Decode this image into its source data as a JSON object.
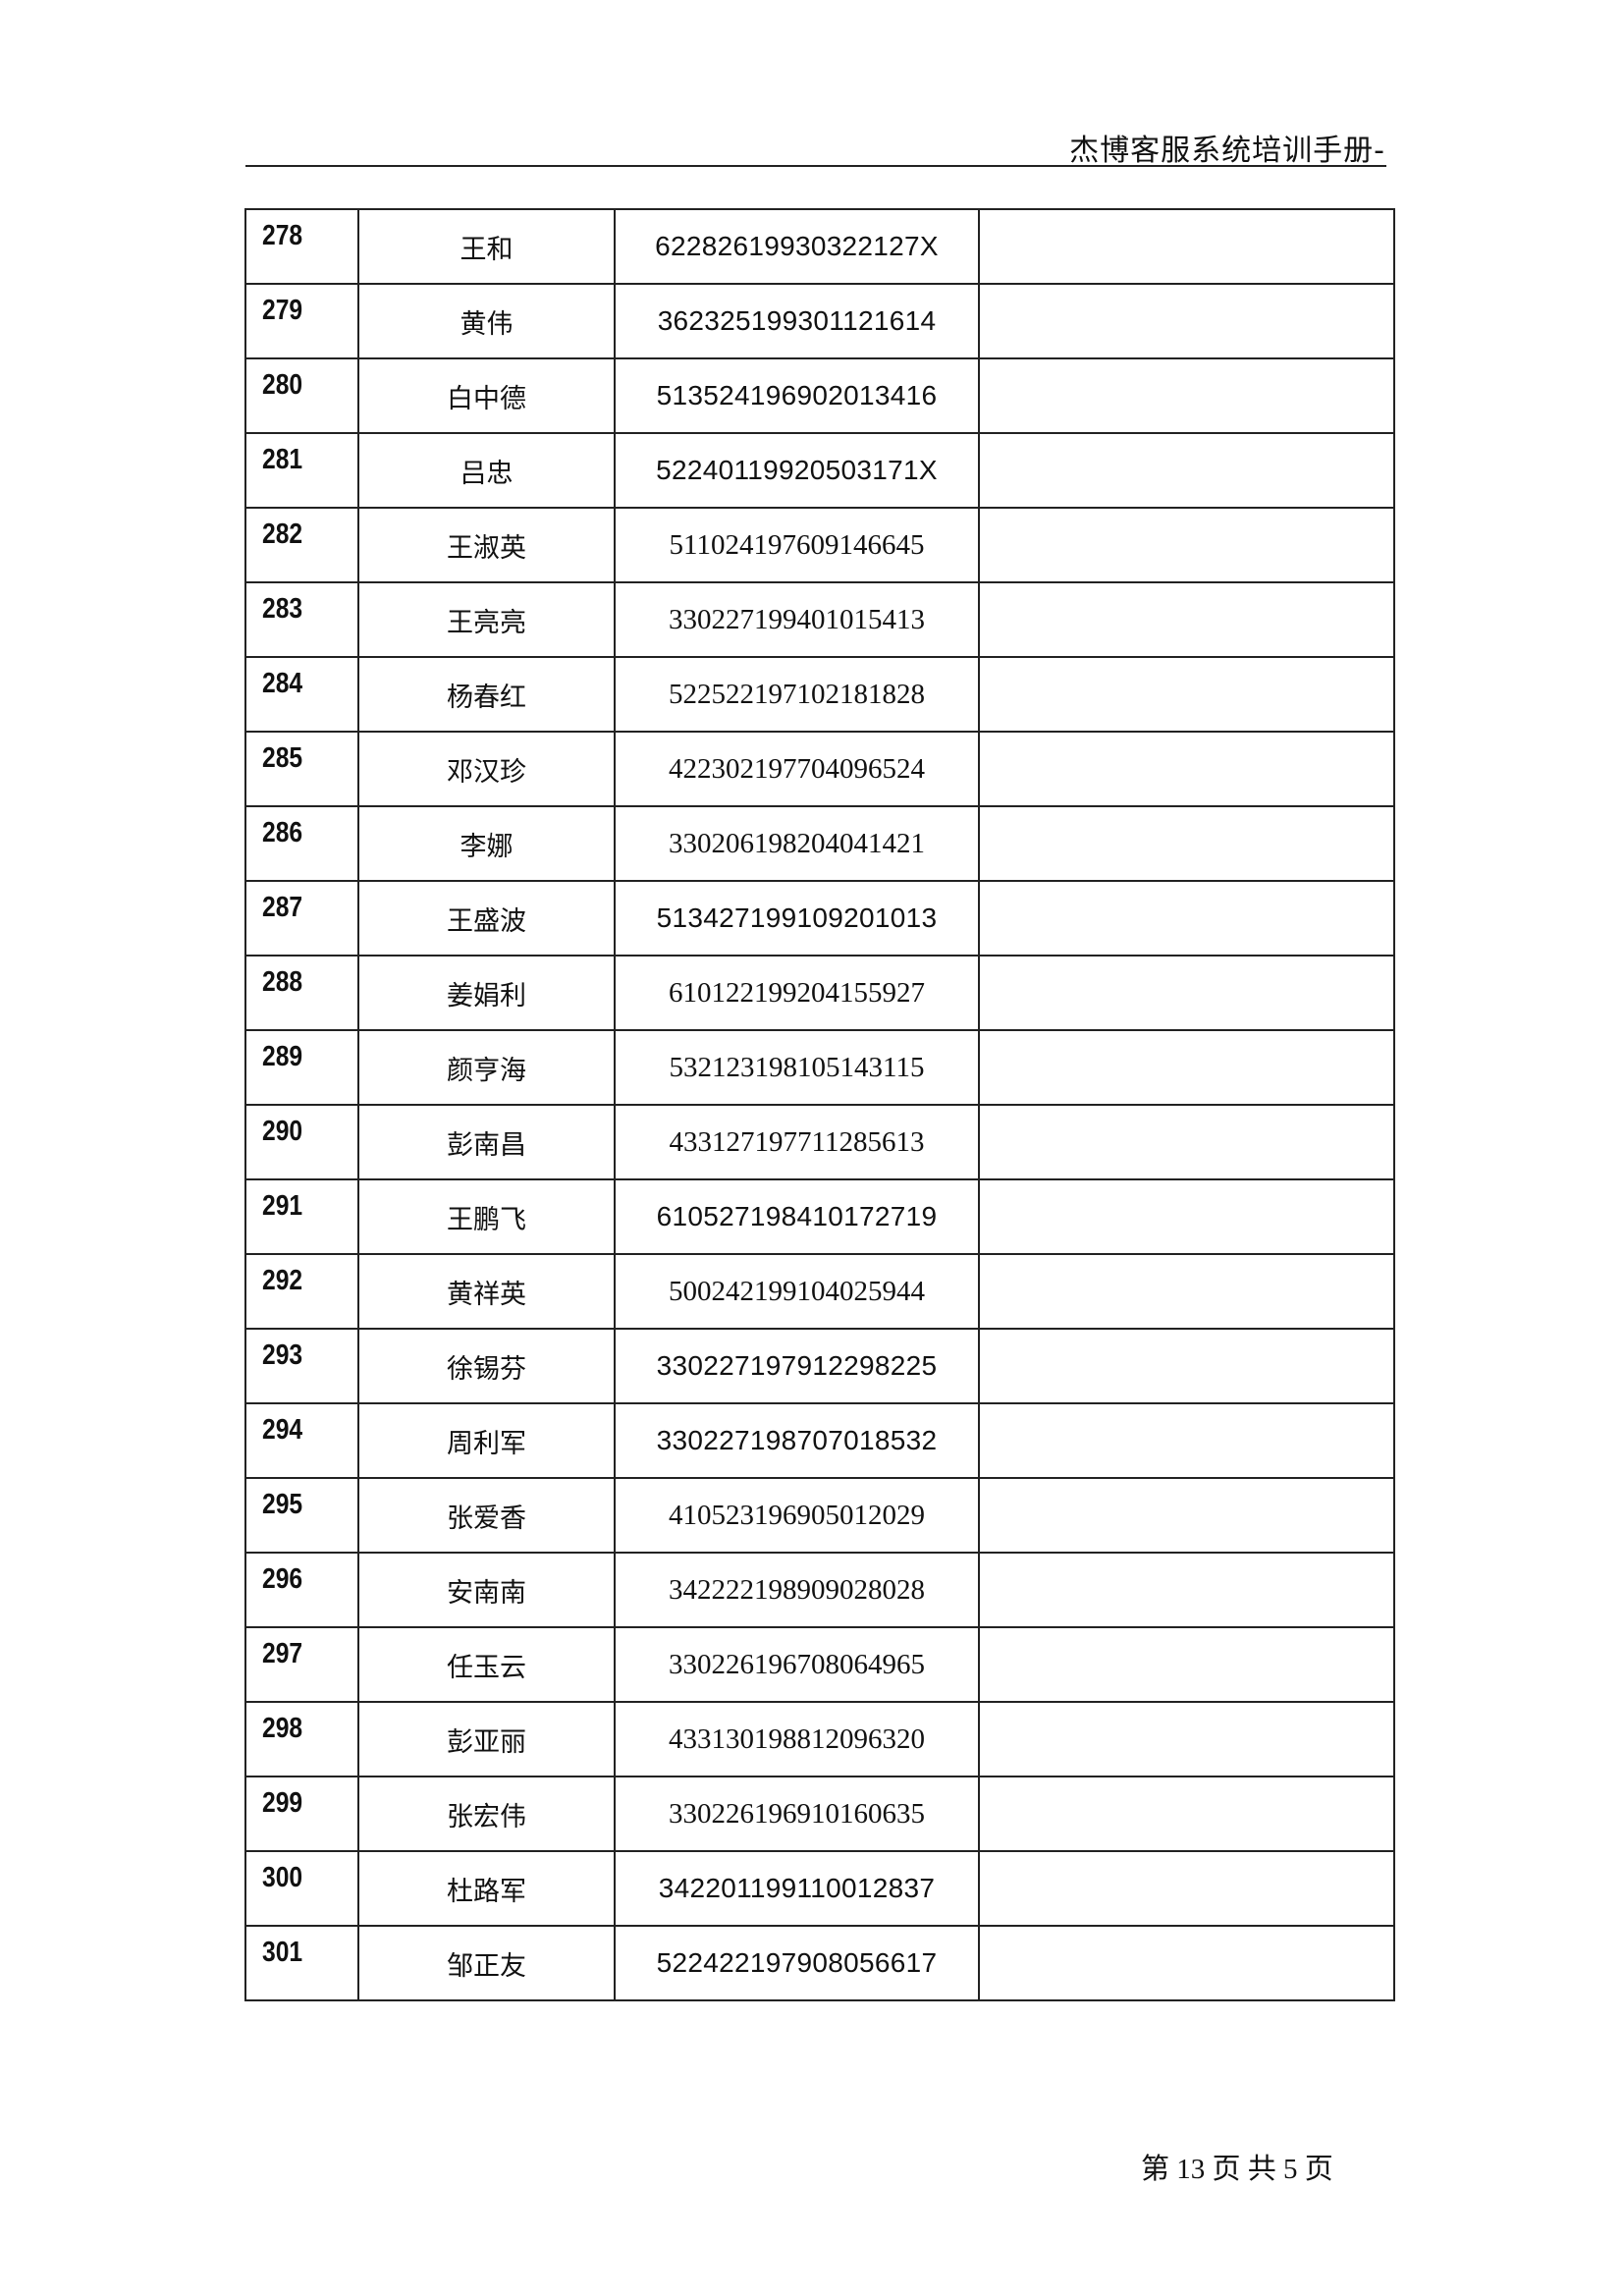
{
  "header": {
    "title": "杰博客服系统培训手册-"
  },
  "table": {
    "rows": [
      {
        "no": "278",
        "name": "王和",
        "id": "62282619930322127X"
      },
      {
        "no": "279",
        "name": "黄伟",
        "id": "362325199301121614"
      },
      {
        "no": "280",
        "name": "白中德",
        "id": "513524196902013416"
      },
      {
        "no": "281",
        "name": "吕忠",
        "id": "52240119920503171X"
      },
      {
        "no": "282",
        "name": "王淑英",
        "id": "511024197609146645"
      },
      {
        "no": "283",
        "name": "王亮亮",
        "id": "330227199401015413"
      },
      {
        "no": "284",
        "name": "杨春红",
        "id": "522522197102181828"
      },
      {
        "no": "285",
        "name": "邓汉珍",
        "id": "422302197704096524"
      },
      {
        "no": "286",
        "name": "李娜",
        "id": "330206198204041421"
      },
      {
        "no": "287",
        "name": "王盛波",
        "id": "513427199109201013"
      },
      {
        "no": "288",
        "name": "姜娟利",
        "id": "610122199204155927"
      },
      {
        "no": "289",
        "name": "颜亨海",
        "id": "532123198105143115"
      },
      {
        "no": "290",
        "name": "彭南昌",
        "id": "433127197711285613"
      },
      {
        "no": "291",
        "name": "王鹏飞",
        "id": "610527198410172719"
      },
      {
        "no": "292",
        "name": "黄祥英",
        "id": "500242199104025944"
      },
      {
        "no": "293",
        "name": "徐锡芬",
        "id": "330227197912298225"
      },
      {
        "no": "294",
        "name": "周利军",
        "id": "330227198707018532"
      },
      {
        "no": "295",
        "name": "张爱香",
        "id": "410523196905012029"
      },
      {
        "no": "296",
        "name": "安南南",
        "id": "342222198909028028"
      },
      {
        "no": "297",
        "name": "任玉云",
        "id": "330226196708064965"
      },
      {
        "no": "298",
        "name": "彭亚丽",
        "id": "433130198812096320"
      },
      {
        "no": "299",
        "name": "张宏伟",
        "id": "330226196910160635"
      },
      {
        "no": "300",
        "name": "杜路军",
        "id": "342201199110012837"
      },
      {
        "no": "301",
        "name": "邹正友",
        "id": "522422197908056617"
      }
    ]
  },
  "footer": {
    "page_text": "第 13 页  共 5 页"
  }
}
